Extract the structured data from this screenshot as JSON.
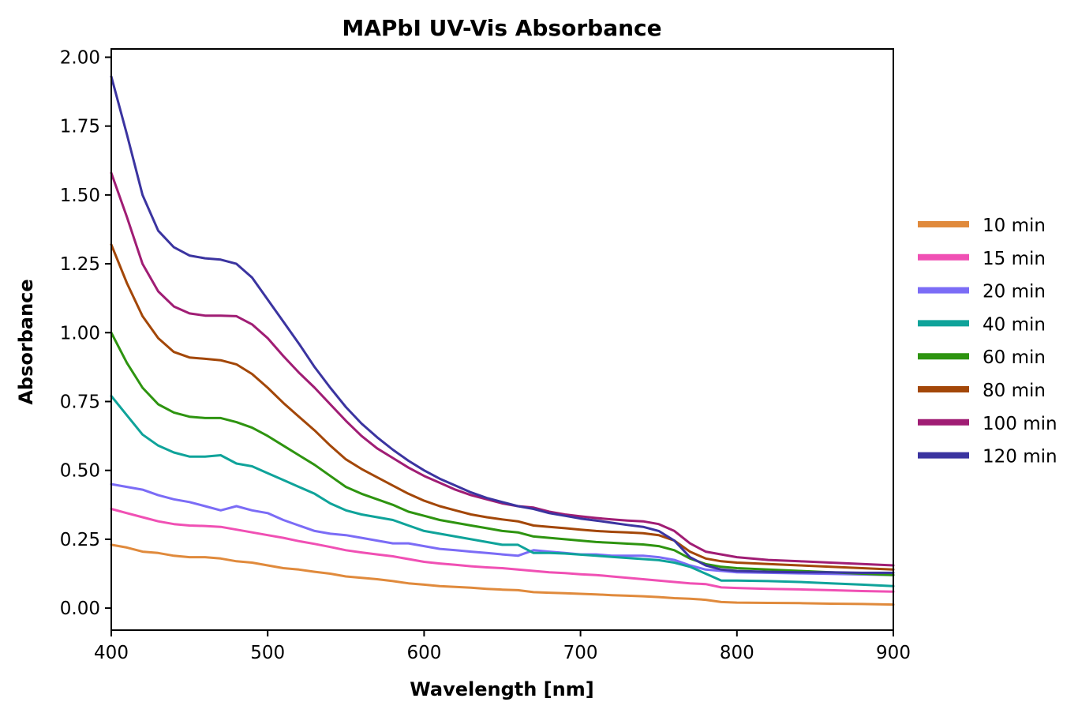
{
  "chart_data": {
    "type": "line",
    "title": "MAPbI UV-Vis Absorbance",
    "xlabel": "Wavelength [nm]",
    "ylabel": "Absorbance",
    "xlim": [
      400,
      900
    ],
    "ylim": [
      -0.08,
      2.03
    ],
    "xticks": [
      400,
      500,
      600,
      700,
      800,
      900
    ],
    "xtick_labels": [
      "400",
      "500",
      "600",
      "700",
      "800",
      "900"
    ],
    "yticks": [
      0.0,
      0.25,
      0.5,
      0.75,
      1.0,
      1.25,
      1.5,
      1.75,
      2.0
    ],
    "ytick_labels": [
      "0.00",
      "0.25",
      "0.50",
      "0.75",
      "1.00",
      "1.25",
      "1.50",
      "1.75",
      "2.00"
    ],
    "grid": false,
    "legend_position": "right-outside",
    "x": [
      400,
      410,
      420,
      430,
      440,
      450,
      460,
      470,
      480,
      490,
      500,
      510,
      520,
      530,
      540,
      550,
      560,
      570,
      580,
      590,
      600,
      610,
      620,
      630,
      640,
      650,
      660,
      670,
      680,
      690,
      700,
      710,
      720,
      730,
      740,
      750,
      760,
      770,
      780,
      790,
      800,
      820,
      840,
      860,
      880,
      900
    ],
    "series": [
      {
        "name": "10 min",
        "color": "#e08a3c",
        "values": [
          0.23,
          0.22,
          0.205,
          0.2,
          0.19,
          0.185,
          0.185,
          0.18,
          0.17,
          0.165,
          0.155,
          0.145,
          0.14,
          0.132,
          0.125,
          0.115,
          0.11,
          0.105,
          0.098,
          0.09,
          0.085,
          0.08,
          0.077,
          0.074,
          0.07,
          0.067,
          0.065,
          0.058,
          0.056,
          0.054,
          0.052,
          0.05,
          0.047,
          0.045,
          0.043,
          0.04,
          0.036,
          0.034,
          0.03,
          0.022,
          0.02,
          0.019,
          0.018,
          0.016,
          0.015,
          0.013
        ]
      },
      {
        "name": "15 min",
        "color": "#f050b4",
        "values": [
          0.36,
          0.345,
          0.33,
          0.315,
          0.305,
          0.3,
          0.298,
          0.295,
          0.285,
          0.275,
          0.265,
          0.255,
          0.243,
          0.233,
          0.222,
          0.21,
          0.202,
          0.195,
          0.188,
          0.178,
          0.168,
          0.162,
          0.157,
          0.152,
          0.148,
          0.145,
          0.14,
          0.135,
          0.13,
          0.127,
          0.123,
          0.12,
          0.115,
          0.11,
          0.105,
          0.1,
          0.095,
          0.09,
          0.087,
          0.075,
          0.073,
          0.07,
          0.068,
          0.065,
          0.062,
          0.06
        ]
      },
      {
        "name": "20 min",
        "color": "#7b6cf6",
        "values": [
          0.45,
          0.44,
          0.43,
          0.41,
          0.395,
          0.385,
          0.37,
          0.355,
          0.37,
          0.355,
          0.345,
          0.32,
          0.3,
          0.28,
          0.27,
          0.265,
          0.255,
          0.245,
          0.235,
          0.235,
          0.225,
          0.215,
          0.21,
          0.205,
          0.2,
          0.195,
          0.19,
          0.21,
          0.205,
          0.2,
          0.195,
          0.195,
          0.19,
          0.19,
          0.19,
          0.185,
          0.175,
          0.155,
          0.14,
          0.135,
          0.13,
          0.128,
          0.126,
          0.124,
          0.122,
          0.12
        ]
      },
      {
        "name": "40 min",
        "color": "#0fa39a",
        "values": [
          0.77,
          0.7,
          0.63,
          0.59,
          0.565,
          0.55,
          0.55,
          0.555,
          0.525,
          0.515,
          0.49,
          0.465,
          0.44,
          0.415,
          0.38,
          0.355,
          0.34,
          0.33,
          0.32,
          0.3,
          0.28,
          0.27,
          0.26,
          0.25,
          0.24,
          0.23,
          0.23,
          0.2,
          0.2,
          0.198,
          0.194,
          0.19,
          0.186,
          0.182,
          0.178,
          0.174,
          0.165,
          0.15,
          0.125,
          0.1,
          0.1,
          0.098,
          0.095,
          0.09,
          0.085,
          0.08
        ]
      },
      {
        "name": "60 min",
        "color": "#2e9410",
        "values": [
          1.0,
          0.89,
          0.8,
          0.74,
          0.71,
          0.695,
          0.69,
          0.69,
          0.675,
          0.655,
          0.625,
          0.59,
          0.555,
          0.52,
          0.48,
          0.44,
          0.415,
          0.395,
          0.375,
          0.35,
          0.335,
          0.32,
          0.31,
          0.3,
          0.29,
          0.28,
          0.275,
          0.26,
          0.255,
          0.25,
          0.245,
          0.24,
          0.237,
          0.234,
          0.231,
          0.225,
          0.21,
          0.18,
          0.16,
          0.15,
          0.145,
          0.14,
          0.135,
          0.13,
          0.125,
          0.12
        ]
      },
      {
        "name": "80 min",
        "color": "#a34708",
        "values": [
          1.32,
          1.18,
          1.06,
          0.98,
          0.93,
          0.91,
          0.905,
          0.9,
          0.885,
          0.85,
          0.8,
          0.745,
          0.695,
          0.645,
          0.59,
          0.54,
          0.505,
          0.475,
          0.445,
          0.415,
          0.39,
          0.37,
          0.355,
          0.34,
          0.33,
          0.322,
          0.315,
          0.3,
          0.295,
          0.29,
          0.285,
          0.28,
          0.277,
          0.275,
          0.272,
          0.265,
          0.245,
          0.205,
          0.18,
          0.17,
          0.165,
          0.16,
          0.155,
          0.15,
          0.145,
          0.14
        ]
      },
      {
        "name": "100 min",
        "color": "#a01d74",
        "values": [
          1.58,
          1.42,
          1.25,
          1.15,
          1.095,
          1.07,
          1.062,
          1.062,
          1.06,
          1.03,
          0.98,
          0.915,
          0.855,
          0.8,
          0.74,
          0.68,
          0.625,
          0.58,
          0.545,
          0.51,
          0.48,
          0.455,
          0.43,
          0.41,
          0.395,
          0.38,
          0.37,
          0.365,
          0.35,
          0.34,
          0.333,
          0.327,
          0.322,
          0.318,
          0.315,
          0.305,
          0.28,
          0.235,
          0.205,
          0.195,
          0.185,
          0.175,
          0.17,
          0.165,
          0.16,
          0.155
        ]
      },
      {
        "name": "120 min",
        "color": "#3b34a0",
        "values": [
          1.93,
          1.72,
          1.5,
          1.37,
          1.31,
          1.28,
          1.27,
          1.265,
          1.25,
          1.2,
          1.12,
          1.04,
          0.96,
          0.875,
          0.8,
          0.73,
          0.67,
          0.62,
          0.575,
          0.535,
          0.5,
          0.47,
          0.445,
          0.42,
          0.4,
          0.385,
          0.37,
          0.36,
          0.345,
          0.335,
          0.325,
          0.318,
          0.31,
          0.302,
          0.295,
          0.28,
          0.245,
          0.185,
          0.155,
          0.14,
          0.135,
          0.132,
          0.13,
          0.13,
          0.128,
          0.128
        ]
      }
    ]
  }
}
